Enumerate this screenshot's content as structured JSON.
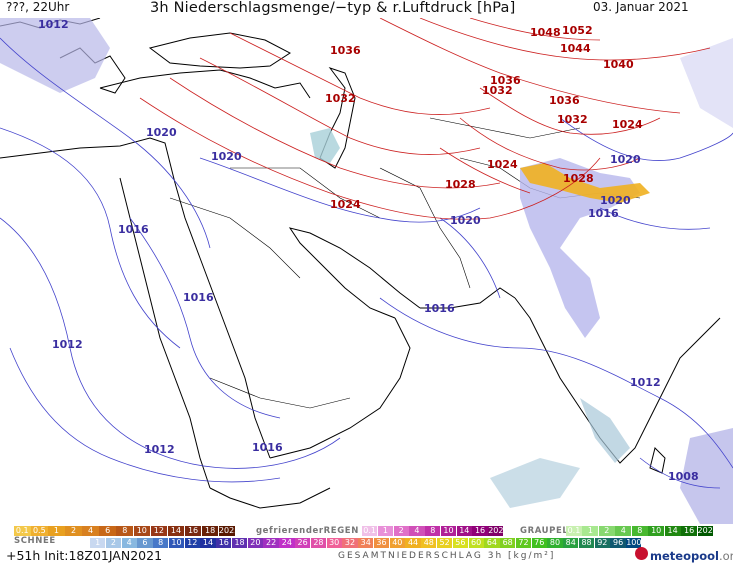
{
  "header": {
    "left": "???, 22Uhr",
    "title": "3h Niederschlagsmenge/−typ & r.Luftdruck [hPa]",
    "date": "03. Januar 2021"
  },
  "map": {
    "sea_color": "#ffffff",
    "isobar_low_color": "#4444cc",
    "isobar_high_color": "#cc2222",
    "isobar_labels": [
      {
        "text": "1012",
        "color": "blue"
      },
      {
        "text": "1020",
        "color": "blue"
      },
      {
        "text": "1020",
        "color": "blue"
      },
      {
        "text": "1016",
        "color": "blue"
      },
      {
        "text": "1016",
        "color": "blue"
      },
      {
        "text": "1012",
        "color": "blue"
      },
      {
        "text": "1012",
        "color": "blue"
      },
      {
        "text": "1016",
        "color": "blue"
      },
      {
        "text": "1016",
        "color": "blue"
      },
      {
        "text": "1020",
        "color": "blue"
      },
      {
        "text": "1020",
        "color": "blue"
      },
      {
        "text": "1016",
        "color": "blue"
      },
      {
        "text": "1020",
        "color": "blue"
      },
      {
        "text": "1012",
        "color": "blue"
      },
      {
        "text": "1008",
        "color": "blue"
      },
      {
        "text": "1036",
        "color": "red"
      },
      {
        "text": "1032",
        "color": "red"
      },
      {
        "text": "1024",
        "color": "red"
      },
      {
        "text": "1028",
        "color": "red"
      },
      {
        "text": "1024",
        "color": "red"
      },
      {
        "text": "1036",
        "color": "red"
      },
      {
        "text": "1032",
        "color": "red"
      },
      {
        "text": "1036",
        "color": "red"
      },
      {
        "text": "1032",
        "color": "red"
      },
      {
        "text": "1024",
        "color": "red"
      },
      {
        "text": "1028",
        "color": "red"
      },
      {
        "text": "1048",
        "color": "red"
      },
      {
        "text": "1052",
        "color": "red"
      },
      {
        "text": "1044",
        "color": "red"
      },
      {
        "text": "1040",
        "color": "red"
      }
    ]
  },
  "legend": {
    "snow_label": "SCHNEE",
    "freezing_rain_label": "gefrierenderREGEN",
    "graupel_label": "GRAUPEL",
    "total_label": "GESAMTNIEDERSCHLAG  3h  [kg/m²]",
    "snow_values": [
      "0.1",
      "0.5",
      "1",
      "2",
      "4",
      "6",
      "8",
      "10",
      "12",
      "14",
      "16",
      "18",
      "2025+"
    ],
    "rain_values": [
      "1",
      "2",
      "4",
      "6",
      "8",
      "10",
      "12",
      "14",
      "16",
      "18",
      "20",
      "22",
      "24",
      "26",
      "28",
      "30",
      "32",
      "34",
      "36",
      "40",
      "44",
      "48",
      "52",
      "56",
      "60",
      "64",
      "68",
      "72",
      "76",
      "80",
      "84",
      "88",
      "92",
      "96",
      "100+"
    ],
    "fzr_values": [
      "0.1",
      "1",
      "2",
      "4",
      "8",
      "10",
      "14",
      "16",
      "2025+"
    ],
    "graupel_values": [
      "0.1",
      "1",
      "2",
      "4",
      "8",
      "10",
      "14",
      "16",
      "2025+"
    ]
  },
  "footer": {
    "run": "+51h  Init:18Z01JAN2021",
    "brand": "meteopool",
    "brand_suffix": ".org"
  }
}
